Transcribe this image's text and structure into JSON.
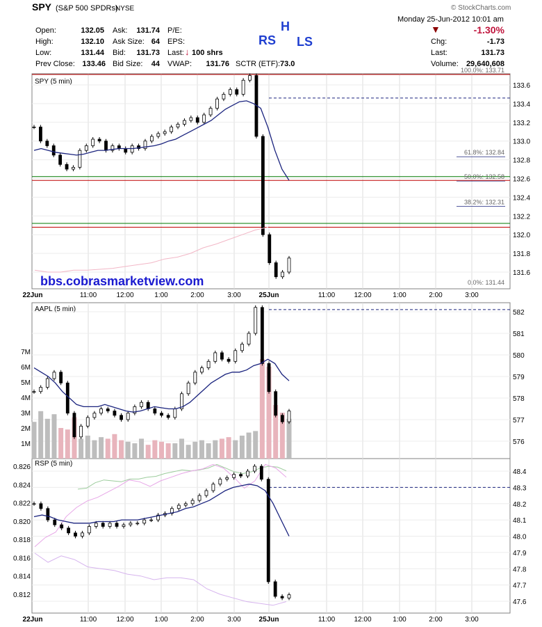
{
  "header": {
    "symbol": "SPY",
    "name": "(S&P 500 SPDRs)",
    "exchange": "NYSE",
    "watermark": "© StockCharts.com",
    "date": "Monday  25-Jun-2012  10:01 am",
    "change_pct": "-1.30%",
    "change_color": "#c0143c",
    "left_fields": [
      {
        "label": "Open:",
        "value": "132.05"
      },
      {
        "label": "High:",
        "value": "132.10"
      },
      {
        "label": "Low:",
        "value": "131.44"
      },
      {
        "label": "Prev Close:",
        "value": "133.46"
      }
    ],
    "mid_fields": [
      {
        "label": "Ask:",
        "value": "131.74"
      },
      {
        "label": "Ask Size:",
        "value": "64"
      },
      {
        "label": "Bid:",
        "value": "131.73"
      },
      {
        "label": "Bid Size:",
        "value": "44"
      }
    ],
    "pe_label": "P/E:",
    "eps_label": "EPS:",
    "last_label": "Last:",
    "last_size": "100 shrs",
    "vwap_label": "VWAP:",
    "vwap_value": "131.76",
    "sctr_label": "SCTR (ETF):",
    "sctr_value": "73.0",
    "right_fields": [
      {
        "label": "Chg:",
        "value": "-1.73"
      },
      {
        "label": "Last:",
        "value": "131.73"
      },
      {
        "label": "Volume:",
        "value": "29,640,608"
      }
    ]
  },
  "annotations": {
    "rs": "RS",
    "h": "H",
    "ls": "LS",
    "website": "bbs.cobrasmarketview.com"
  },
  "chart_data": [
    {
      "type": "line",
      "title": "SPY (5 min)",
      "x_ticks": [
        "22Jun",
        "11:00",
        "12:00",
        "1:00",
        "2:00",
        "3:00",
        "25Jun",
        "11:00",
        "12:00",
        "1:00",
        "2:00",
        "3:00"
      ],
      "y_ticks": [
        "133.6",
        "133.4",
        "133.2",
        "133.0",
        "132.8",
        "132.6",
        "132.4",
        "132.2",
        "132.0",
        "131.8",
        "131.6"
      ],
      "ylim": [
        131.44,
        133.71
      ],
      "fib_levels": [
        {
          "label": "100.0%: 133.71",
          "value": 133.71
        },
        {
          "label": "61.8%: 132.84",
          "value": 132.84
        },
        {
          "label": "50.0%: 132.58",
          "value": 132.58
        },
        {
          "label": "38.2%: 132.31",
          "value": 132.31
        },
        {
          "label": "0.0%: 131.44",
          "value": 131.44
        }
      ],
      "horizontal_lines": [
        {
          "value": 133.46,
          "style": "dashed",
          "color": "#1a237e"
        },
        {
          "value": 132.58,
          "style": "solid",
          "color": "#c00000"
        },
        {
          "value": 132.62,
          "style": "solid",
          "color": "#007a00"
        },
        {
          "value": 132.12,
          "style": "solid",
          "color": "#007a00"
        },
        {
          "value": 132.08,
          "style": "solid",
          "color": "#c00000"
        }
      ],
      "series": [
        {
          "values": [
            133.15,
            133.0,
            132.95,
            132.85,
            132.75,
            132.7,
            132.72,
            132.9,
            132.95,
            133.02,
            133.0,
            132.9,
            132.95,
            132.92,
            132.88,
            132.95,
            132.92,
            133.0,
            133.05,
            133.08,
            133.1,
            133.15,
            133.18,
            133.22,
            133.25,
            133.2,
            133.28,
            133.35,
            133.45,
            133.5,
            133.55,
            133.5,
            133.65,
            133.7,
            133.05,
            132.0,
            131.7,
            131.55,
            131.6,
            131.75
          ]
        },
        {
          "values": [
            132.9,
            132.92,
            132.9,
            132.88,
            132.87,
            132.86,
            132.85,
            132.86,
            132.88,
            132.9,
            132.9,
            132.91,
            132.92,
            132.92,
            132.92,
            132.93,
            132.94,
            132.95,
            132.97,
            133.0,
            133.02,
            133.06,
            133.1,
            133.14,
            133.18,
            133.22,
            133.28,
            133.34,
            133.38,
            133.42,
            133.43,
            133.4,
            133.35,
            133.15,
            132.9,
            132.7,
            132.58
          ]
        }
      ]
    },
    {
      "type": "line",
      "title": "AAPL (5 min)",
      "x_ticks": [
        "22Jun",
        "11:00",
        "12:00",
        "1:00",
        "2:00",
        "3:00",
        "25Jun",
        "11:00",
        "12:00",
        "1:00",
        "2:00",
        "3:00"
      ],
      "y_ticks": [
        "582",
        "581",
        "580",
        "579",
        "578",
        "577",
        "576"
      ],
      "y2_ticks": [
        "7M",
        "6M",
        "5M",
        "4M",
        "3M",
        "2M",
        "1M"
      ],
      "ylim": [
        575.5,
        582.3
      ],
      "series": [
        {
          "values": [
            578.3,
            578.5,
            578.9,
            579.2,
            578.7,
            577.3,
            576.2,
            576.7,
            577.1,
            577.3,
            577.5,
            577.4,
            577.2,
            577.0,
            577.3,
            577.6,
            577.8,
            577.5,
            577.3,
            577.2,
            577.1,
            577.5,
            578.2,
            578.7,
            579.2,
            579.4,
            579.7,
            580.1,
            579.8,
            579.7,
            580.2,
            580.5,
            581.0,
            582.2,
            579.6,
            578.3,
            577.2,
            576.9,
            577.4
          ]
        },
        {
          "values": [
            579.4,
            579.2,
            579.0,
            578.7,
            578.3,
            578.0,
            577.7,
            577.6,
            577.6,
            577.6,
            577.7,
            577.6,
            577.5,
            577.4,
            577.35,
            577.4,
            577.5,
            577.6,
            577.55,
            577.5,
            577.5,
            577.6,
            577.8,
            578.1,
            578.4,
            578.7,
            578.9,
            579.1,
            579.2,
            579.2,
            579.3,
            579.5,
            579.6,
            579.8,
            579.6,
            579.1,
            578.8
          ]
        },
        {
          "name": "volume",
          "values": [
            2.4,
            3.1,
            2.6,
            2.9,
            2.0,
            1.9,
            2.7,
            1.3,
            1.5,
            1.2,
            1.4,
            1.3,
            1.6,
            1.2,
            1.1,
            1.0,
            1.3,
            0.9,
            1.2,
            1.1,
            1.0,
            1.0,
            1.3,
            0.9,
            1.1,
            1.2,
            1.0,
            1.2,
            1.3,
            1.4,
            1.2,
            1.5,
            1.7,
            1.8,
            6.5,
            6.0,
            3.5,
            3.0,
            2.6
          ]
        }
      ]
    },
    {
      "type": "line",
      "title": "RSP (5 min)",
      "x_ticks": [
        "22Jun",
        "11:00",
        "12:00",
        "1:00",
        "2:00",
        "3:00",
        "25Jun",
        "11:00",
        "12:00",
        "1:00",
        "2:00",
        "3:00"
      ],
      "y_ticks": [
        "0.826",
        "0.824",
        "0.822",
        "0.820",
        "0.818",
        "0.816",
        "0.814",
        "0.812"
      ],
      "y2_ticks": [
        "48.4",
        "48.3",
        "48.2",
        "48.1",
        "48.0",
        "47.9",
        "47.8",
        "47.7",
        "47.6"
      ],
      "ylim": [
        47.55,
        48.45
      ],
      "series": [
        {
          "values": [
            48.2,
            48.17,
            48.1,
            48.07,
            48.05,
            48.02,
            48.0,
            48.02,
            48.06,
            48.08,
            48.06,
            48.08,
            48.06,
            48.07,
            48.08,
            48.08,
            48.1,
            48.1,
            48.13,
            48.14,
            48.17,
            48.19,
            48.2,
            48.22,
            48.25,
            48.28,
            48.32,
            48.35,
            48.36,
            48.38,
            48.37,
            48.4,
            48.43,
            48.35,
            47.72,
            47.63,
            47.62,
            47.64
          ]
        },
        {
          "values": [
            48.12,
            48.13,
            48.12,
            48.1,
            48.09,
            48.08,
            48.08,
            48.08,
            48.09,
            48.09,
            48.09,
            48.1,
            48.1,
            48.1,
            48.11,
            48.12,
            48.13,
            48.14,
            48.15,
            48.17,
            48.18,
            48.2,
            48.22,
            48.25,
            48.28,
            48.3,
            48.31,
            48.32,
            48.31,
            48.28,
            48.2,
            48.1,
            48.0
          ]
        },
        {
          "values": [
            0.8235,
            0.8236,
            0.8242,
            0.8245,
            0.8244,
            0.8243,
            0.8246,
            0.8246,
            0.8248,
            0.8249,
            0.8252,
            0.8254,
            0.8256,
            0.8255,
            0.8256,
            0.8258,
            0.8262,
            0.8258,
            0.8254,
            0.8252,
            0.8254,
            0.8258,
            0.826,
            0.8259,
            0.8255
          ]
        },
        {
          "values": [
            0.8172,
            0.8182,
            0.8188,
            0.8205,
            0.8215,
            0.8222,
            0.8226,
            0.8232,
            0.8238,
            0.8245,
            0.8243,
            0.8238,
            0.8244,
            0.8248,
            0.8252,
            0.8255,
            0.8257,
            0.8262,
            0.8258,
            0.8248,
            0.8236,
            0.8244,
            0.8262,
            0.8258,
            0.8248
          ]
        },
        {
          "values": [
            0.8165,
            0.8155,
            0.8162,
            0.8158,
            0.815,
            0.8148,
            0.8146,
            0.8142,
            0.814,
            0.8136,
            0.8138,
            0.8138,
            0.8136,
            0.8126,
            0.812,
            0.8116,
            0.8112,
            0.811,
            0.8108,
            0.8112
          ]
        }
      ]
    }
  ]
}
